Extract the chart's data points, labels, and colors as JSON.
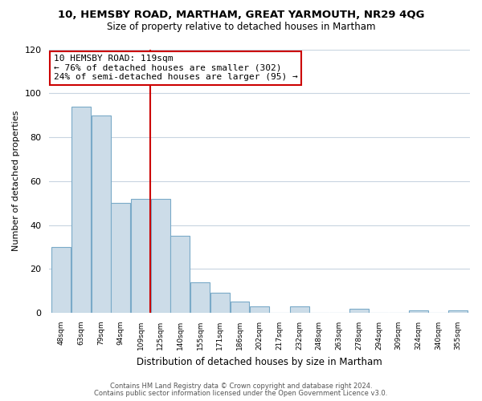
{
  "title": "10, HEMSBY ROAD, MARTHAM, GREAT YARMOUTH, NR29 4QG",
  "subtitle": "Size of property relative to detached houses in Martham",
  "xlabel": "Distribution of detached houses by size in Martham",
  "ylabel": "Number of detached properties",
  "bar_color": "#ccdce8",
  "bar_edge_color": "#7aaac8",
  "categories": [
    "48sqm",
    "63sqm",
    "79sqm",
    "94sqm",
    "109sqm",
    "125sqm",
    "140sqm",
    "155sqm",
    "171sqm",
    "186sqm",
    "202sqm",
    "217sqm",
    "232sqm",
    "248sqm",
    "263sqm",
    "278sqm",
    "294sqm",
    "309sqm",
    "324sqm",
    "340sqm",
    "355sqm"
  ],
  "values": [
    30,
    94,
    90,
    50,
    52,
    52,
    35,
    14,
    9,
    5,
    3,
    0,
    3,
    0,
    0,
    2,
    0,
    0,
    1,
    0,
    1
  ],
  "ref_line_x": 4.5,
  "ref_line_color": "#cc0000",
  "annotation_line1": "10 HEMSBY ROAD: 119sqm",
  "annotation_line2": "← 76% of detached houses are smaller (302)",
  "annotation_line3": "24% of semi-detached houses are larger (95) →",
  "annotation_box_color": "#ffffff",
  "annotation_box_edge": "#cc0000",
  "ylim": [
    0,
    120
  ],
  "yticks": [
    0,
    20,
    40,
    60,
    80,
    100,
    120
  ],
  "footer1": "Contains HM Land Registry data © Crown copyright and database right 2024.",
  "footer2": "Contains public sector information licensed under the Open Government Licence v3.0.",
  "bg_color": "#ffffff",
  "grid_color": "#c8d4e0"
}
